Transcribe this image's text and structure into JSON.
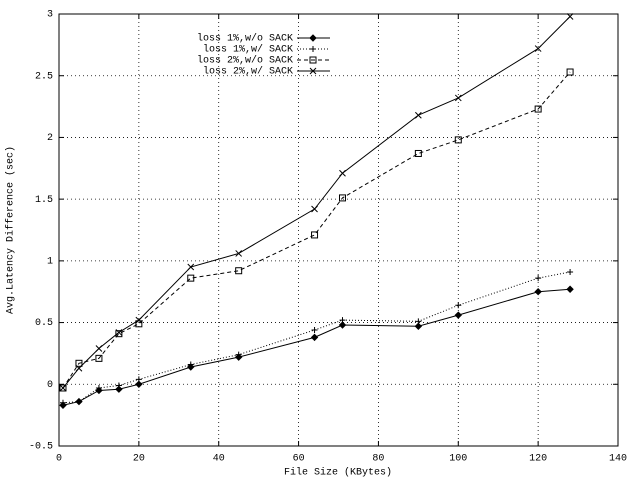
{
  "chart_data": {
    "type": "line",
    "xlabel": "File Size (KBytes)",
    "ylabel": "Avg.Latency Difference (sec)",
    "x": [
      1,
      5,
      10,
      15,
      20,
      33,
      45,
      64,
      71,
      90,
      100,
      120,
      128
    ],
    "series": [
      {
        "name": "loss 1%,w/o SACK",
        "color": "#000000",
        "dash": "solid",
        "marker": "diamond",
        "values": [
          -0.17,
          -0.14,
          -0.05,
          -0.04,
          0.0,
          0.14,
          0.22,
          0.38,
          0.48,
          0.47,
          0.56,
          0.75,
          0.77
        ]
      },
      {
        "name": "loss 1%,w/ SACK",
        "color": "#000000",
        "dash": "dotted",
        "marker": "plus",
        "values": [
          -0.15,
          -0.14,
          -0.03,
          -0.01,
          0.04,
          0.16,
          0.24,
          0.44,
          0.52,
          0.51,
          0.64,
          0.86,
          0.91
        ]
      },
      {
        "name": "loss 2%,w/o SACK",
        "color": "#000000",
        "dash": "dashed",
        "marker": "square",
        "values": [
          -0.03,
          0.17,
          0.21,
          0.41,
          0.49,
          0.86,
          0.92,
          1.21,
          1.51,
          1.87,
          1.98,
          2.23,
          2.53
        ]
      },
      {
        "name": "loss 2%,w/ SACK",
        "color": "#000000",
        "dash": "solid",
        "marker": "cross",
        "values": [
          -0.03,
          0.13,
          0.29,
          0.42,
          0.52,
          0.95,
          1.06,
          1.42,
          1.71,
          2.18,
          2.32,
          2.72,
          2.98
        ]
      }
    ],
    "xlim": [
      0,
      140
    ],
    "xticks": [
      0,
      20,
      40,
      60,
      80,
      100,
      120,
      140
    ],
    "ylim": [
      -0.5,
      3
    ],
    "yticks": [
      -0.5,
      0,
      0.5,
      1,
      1.5,
      2,
      2.5,
      3
    ],
    "grid": true,
    "legend": "top-left"
  }
}
